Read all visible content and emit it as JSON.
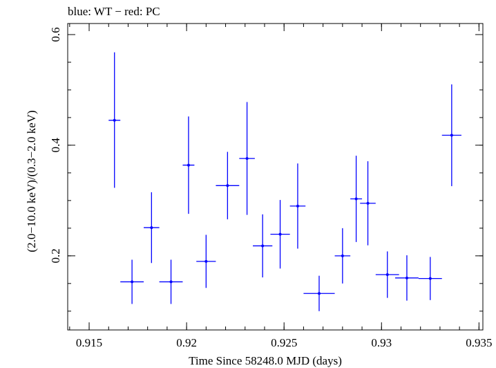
{
  "chart_data": {
    "type": "scatter",
    "title": "blue: WT − red: PC",
    "xlabel": "Time Since 58248.0 MJD (days)",
    "ylabel": "(2.0−10.0 keV)/(0.3−2.0 keV)",
    "xlim": [
      0.9139,
      0.9352
    ],
    "ylim": [
      0.066,
      0.62
    ],
    "x_ticks": [
      0.915,
      0.92,
      0.925,
      0.93,
      0.935
    ],
    "x_tick_labels": [
      "0.915",
      "0.92",
      "0.925",
      "0.93",
      "0.935"
    ],
    "y_ticks": [
      0.2,
      0.4,
      0.6
    ],
    "y_tick_labels": [
      "0.2",
      "0.4",
      "0.6"
    ],
    "series": [
      {
        "name": "WT",
        "color": "#0000ff",
        "points": [
          {
            "x": 0.9163,
            "xerr": 0.0003,
            "y": 0.445,
            "yerr_low": 0.122,
            "yerr_high": 0.123
          },
          {
            "x": 0.9172,
            "xerr": 0.0006,
            "y": 0.153,
            "yerr_low": 0.04,
            "yerr_high": 0.04
          },
          {
            "x": 0.9182,
            "xerr": 0.0004,
            "y": 0.251,
            "yerr_low": 0.064,
            "yerr_high": 0.064
          },
          {
            "x": 0.9192,
            "xerr": 0.0006,
            "y": 0.153,
            "yerr_low": 0.04,
            "yerr_high": 0.04
          },
          {
            "x": 0.9201,
            "xerr": 0.0003,
            "y": 0.364,
            "yerr_low": 0.088,
            "yerr_high": 0.088
          },
          {
            "x": 0.921,
            "xerr": 0.0005,
            "y": 0.19,
            "yerr_low": 0.048,
            "yerr_high": 0.048
          },
          {
            "x": 0.9221,
            "xerr": 0.0006,
            "y": 0.327,
            "yerr_low": 0.061,
            "yerr_high": 0.061
          },
          {
            "x": 0.9231,
            "xerr": 0.0004,
            "y": 0.376,
            "yerr_low": 0.102,
            "yerr_high": 0.102
          },
          {
            "x": 0.9239,
            "xerr": 0.0005,
            "y": 0.218,
            "yerr_low": 0.057,
            "yerr_high": 0.057
          },
          {
            "x": 0.9248,
            "xerr": 0.0005,
            "y": 0.239,
            "yerr_low": 0.062,
            "yerr_high": 0.062
          },
          {
            "x": 0.9257,
            "xerr": 0.0004,
            "y": 0.29,
            "yerr_low": 0.077,
            "yerr_high": 0.077
          },
          {
            "x": 0.9268,
            "xerr": 0.0008,
            "y": 0.132,
            "yerr_low": 0.032,
            "yerr_high": 0.032
          },
          {
            "x": 0.928,
            "xerr": 0.0004,
            "y": 0.2,
            "yerr_low": 0.05,
            "yerr_high": 0.05
          },
          {
            "x": 0.9287,
            "xerr": 0.0003,
            "y": 0.303,
            "yerr_low": 0.078,
            "yerr_high": 0.078
          },
          {
            "x": 0.9293,
            "xerr": 0.0004,
            "y": 0.295,
            "yerr_low": 0.076,
            "yerr_high": 0.076
          },
          {
            "x": 0.9303,
            "xerr": 0.0006,
            "y": 0.166,
            "yerr_low": 0.042,
            "yerr_high": 0.042
          },
          {
            "x": 0.9313,
            "xerr": 0.0006,
            "y": 0.16,
            "yerr_low": 0.041,
            "yerr_high": 0.041
          },
          {
            "x": 0.9325,
            "xerr": 0.0006,
            "y": 0.159,
            "yerr_low": 0.039,
            "yerr_high": 0.039
          },
          {
            "x": 0.9336,
            "xerr": 0.0005,
            "y": 0.418,
            "yerr_low": 0.092,
            "yerr_high": 0.092
          }
        ]
      },
      {
        "name": "PC",
        "color": "#ff0000",
        "points": []
      }
    ],
    "grid": false
  }
}
